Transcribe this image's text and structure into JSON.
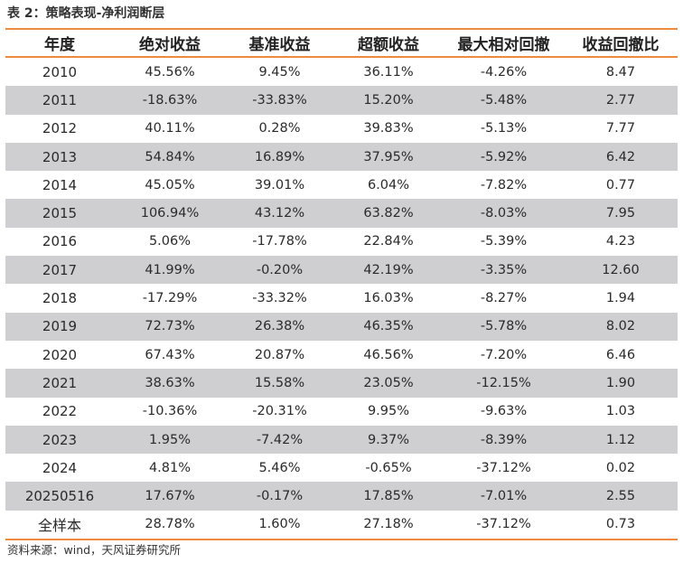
{
  "title": "表 2：策略表现-净利润断层",
  "table": {
    "headers": [
      "年度",
      "绝对收益",
      "基准收益",
      "超额收益",
      "最大相对回撤",
      "收益回撤比"
    ],
    "rows": [
      [
        "2010",
        "45.56%",
        "9.45%",
        "36.11%",
        "-4.26%",
        "8.47"
      ],
      [
        "2011",
        "-18.63%",
        "-33.83%",
        "15.20%",
        "-5.48%",
        "2.77"
      ],
      [
        "2012",
        "40.11%",
        "0.28%",
        "39.83%",
        "-5.13%",
        "7.77"
      ],
      [
        "2013",
        "54.84%",
        "16.89%",
        "37.95%",
        "-5.92%",
        "6.42"
      ],
      [
        "2014",
        "45.05%",
        "39.01%",
        "6.04%",
        "-7.82%",
        "0.77"
      ],
      [
        "2015",
        "106.94%",
        "43.12%",
        "63.82%",
        "-8.03%",
        "7.95"
      ],
      [
        "2016",
        "5.06%",
        "-17.78%",
        "22.84%",
        "-5.39%",
        "4.23"
      ],
      [
        "2017",
        "41.99%",
        "-0.20%",
        "42.19%",
        "-3.35%",
        "12.60"
      ],
      [
        "2018",
        "-17.29%",
        "-33.32%",
        "16.03%",
        "-8.27%",
        "1.94"
      ],
      [
        "2019",
        "72.73%",
        "26.38%",
        "46.35%",
        "-5.78%",
        "8.02"
      ],
      [
        "2020",
        "67.43%",
        "20.87%",
        "46.56%",
        "-7.20%",
        "6.46"
      ],
      [
        "2021",
        "38.63%",
        "15.58%",
        "23.05%",
        "-12.15%",
        "1.90"
      ],
      [
        "2022",
        "-10.36%",
        "-20.31%",
        "9.95%",
        "-9.63%",
        "1.03"
      ],
      [
        "2023",
        "1.95%",
        "-7.42%",
        "9.37%",
        "-8.39%",
        "1.12"
      ],
      [
        "2024",
        "4.81%",
        "5.46%",
        "-0.65%",
        "-37.12%",
        "0.02"
      ],
      [
        "20250516",
        "17.67%",
        "-0.17%",
        "17.85%",
        "-7.01%",
        "2.55"
      ],
      [
        "全样本",
        "28.78%",
        "1.60%",
        "27.18%",
        "-37.12%",
        "0.73"
      ]
    ]
  },
  "source": "资料来源：wind，天风证券研究所",
  "colors": {
    "accent_rule": "#ee8a3d",
    "stripe": "#cfcfd1"
  }
}
